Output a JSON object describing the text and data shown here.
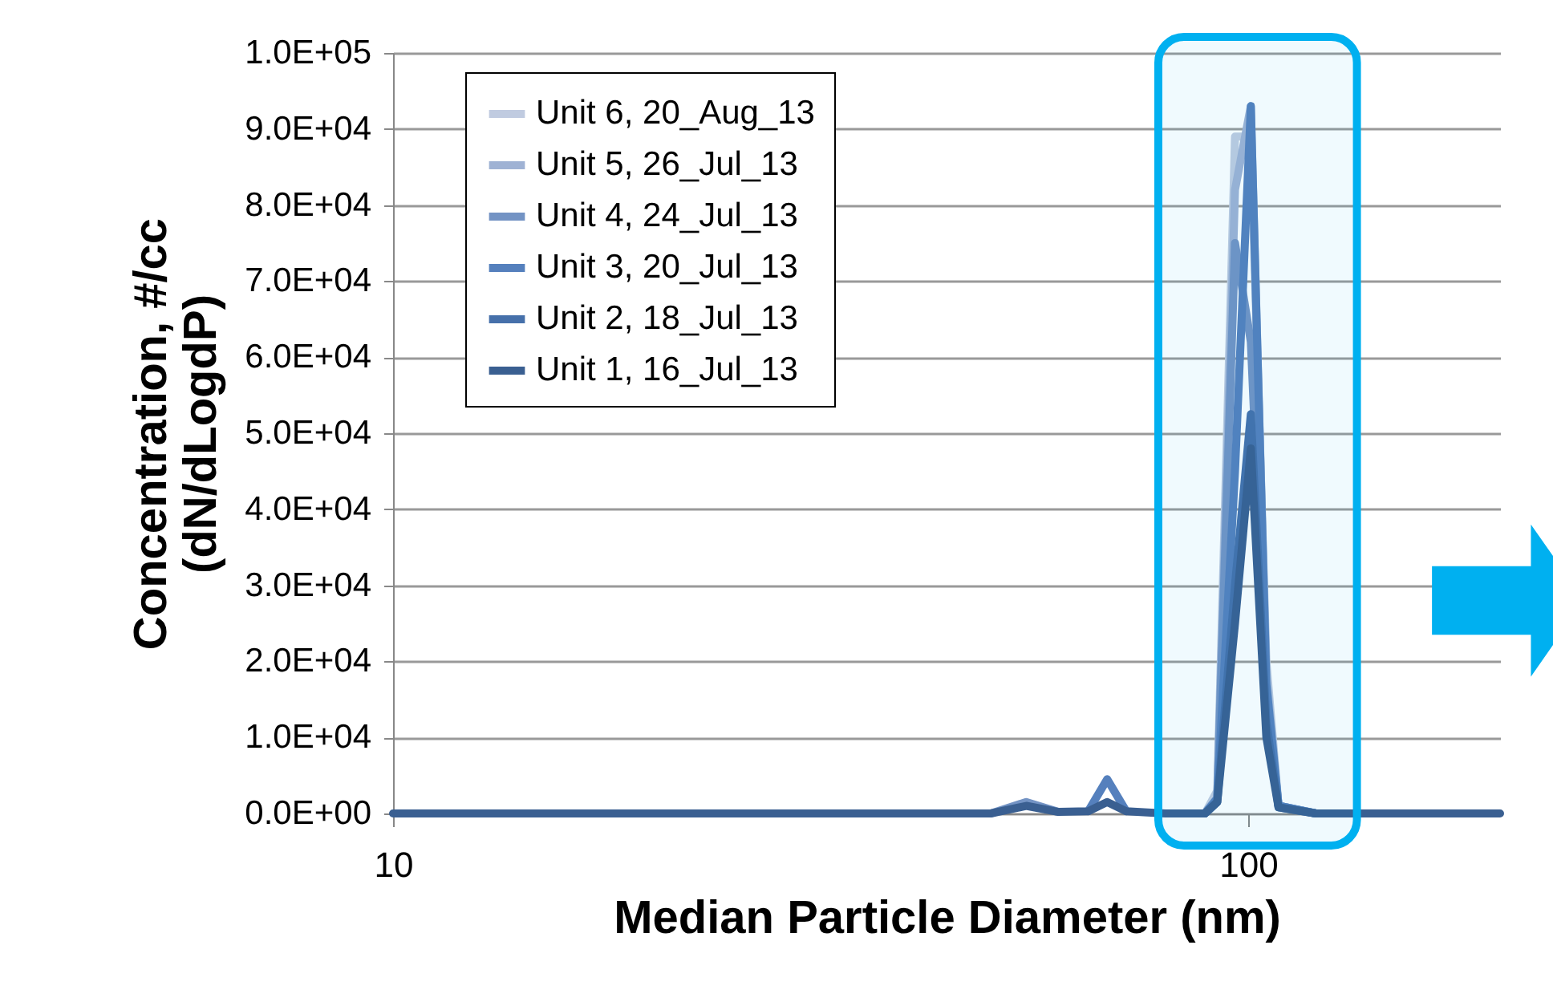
{
  "chart_data": {
    "type": "line",
    "xlabel": "Median Particle Diameter (nm)",
    "ylabel": "Concentration, #/cc\n(dN/dLogdP)",
    "x": [
      10,
      30,
      50,
      55,
      60,
      65,
      68.4,
      72,
      80,
      89,
      92,
      96.5,
      100.7,
      105,
      108.5,
      120,
      140,
      145,
      150,
      197
    ],
    "series": [
      {
        "name": "Unit 6, 20_Aug_13",
        "color": "#c0cbe0",
        "values": [
          null,
          null,
          null,
          null,
          null,
          null,
          null,
          null,
          null,
          0,
          3000,
          89000,
          89000,
          20000,
          1000,
          0,
          null,
          null,
          null,
          null
        ]
      },
      {
        "name": "Unit 5, 26_Jul_13",
        "color": "#9fb2d4",
        "values": [
          null,
          null,
          null,
          null,
          null,
          null,
          null,
          null,
          null,
          0,
          2000,
          82000,
          93000,
          18000,
          1000,
          0,
          null,
          null,
          null,
          null
        ]
      },
      {
        "name": "Unit 4, 24_Jul_13",
        "color": "#7393c4",
        "values": [
          null,
          null,
          0,
          1500,
          200,
          null,
          null,
          null,
          null,
          0,
          2000,
          75000,
          62000,
          16000,
          1000,
          0,
          null,
          null,
          null,
          null
        ]
      },
      {
        "name": "Unit 3, 20_Jul_13",
        "color": "#5580bd",
        "values": [
          null,
          null,
          null,
          null,
          null,
          300,
          4500,
          300,
          null,
          0,
          2000,
          45000,
          93000,
          17000,
          1000,
          0,
          null,
          null,
          null,
          null
        ]
      },
      {
        "name": "Unit 2, 18_Jul_13",
        "color": "#4670aa",
        "values": [
          null,
          null,
          null,
          null,
          null,
          null,
          null,
          null,
          null,
          0,
          1500,
          30000,
          52500,
          12000,
          800,
          0,
          null,
          null,
          null,
          null
        ]
      },
      {
        "name": "Unit 1, 16_Jul_13",
        "color": "#3a5f91",
        "values": [
          0,
          0,
          0,
          1000,
          200,
          300,
          1500,
          300,
          0,
          0,
          1500,
          25000,
          48000,
          10000,
          800,
          0,
          0,
          0,
          0,
          0
        ]
      }
    ],
    "log": "x",
    "xlim": [
      10,
      197
    ],
    "xticks": [
      10,
      100
    ],
    "ylim": [
      0,
      100000
    ],
    "yticks": [
      {
        "value": 0,
        "label": "0.0E+00"
      },
      {
        "value": 10000,
        "label": "1.0E+04"
      },
      {
        "value": 20000,
        "label": "2.0E+04"
      },
      {
        "value": 30000,
        "label": "3.0E+04"
      },
      {
        "value": 40000,
        "label": "4.0E+04"
      },
      {
        "value": 50000,
        "label": "5.0E+04"
      },
      {
        "value": 60000,
        "label": "6.0E+04"
      },
      {
        "value": 70000,
        "label": "7.0E+04"
      },
      {
        "value": 80000,
        "label": "8.0E+04"
      },
      {
        "value": 90000,
        "label": "9.0E+04"
      },
      {
        "value": 100000,
        "label": "1.0E+05"
      }
    ],
    "grid": "y",
    "legend": "top left",
    "line_style": "solid",
    "marker": "none",
    "bands": [
      {
        "axis": "x",
        "from": 78.5,
        "to": 134,
        "color": "#00b0f0"
      }
    ]
  }
}
